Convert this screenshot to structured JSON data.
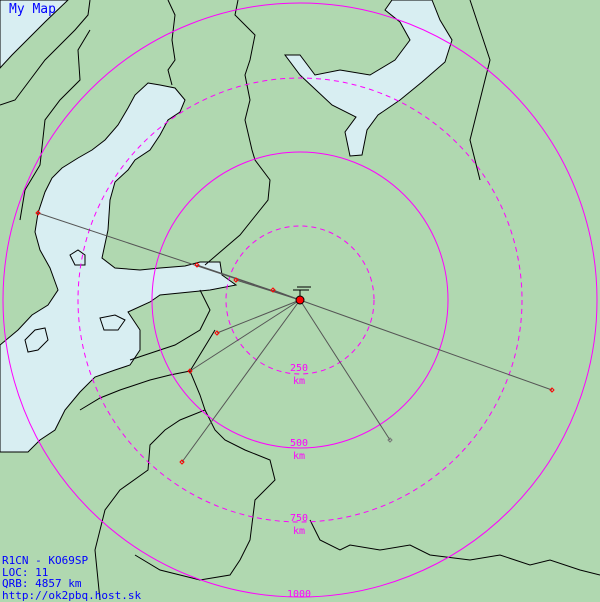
{
  "title": "My Map",
  "info": {
    "call_locator": "R1CN - KO69SP",
    "loc": "LOC: 11",
    "qrb": "QRB: 4857 km",
    "url": "http://ok2pbq.host.sk"
  },
  "rings": [
    {
      "km": "250",
      "unit": "km",
      "style": "dashed"
    },
    {
      "km": "500",
      "unit": "km",
      "style": "solid"
    },
    {
      "km": "750",
      "unit": "km",
      "style": "dashed"
    },
    {
      "km": "1000",
      "unit": "",
      "style": "solid"
    }
  ],
  "colors": {
    "land": "#b0d8b0",
    "water": "#d8eef2",
    "rings": "#ff00ff",
    "paths": "#555555",
    "stations": "#ff0000",
    "text": "#0000ff"
  },
  "home_station_icon": "antenna-icon"
}
